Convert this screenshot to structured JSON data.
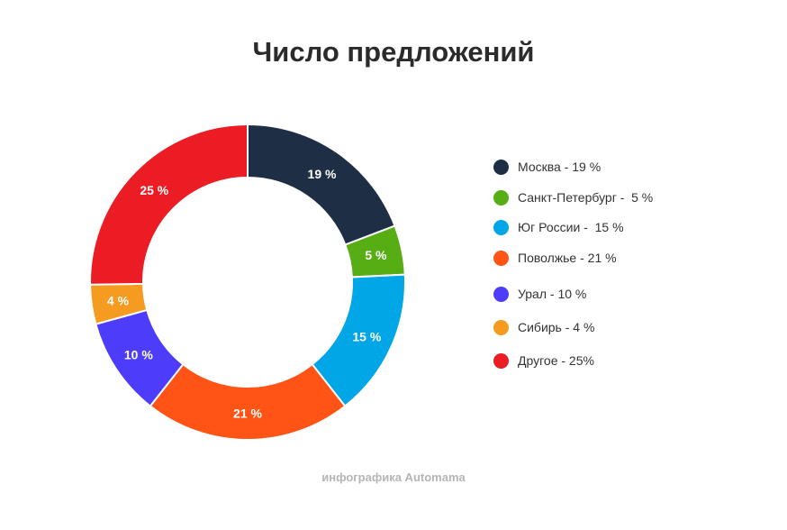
{
  "chart_data": {
    "type": "pie",
    "title": "Число предложений",
    "donut": true,
    "legend_position": "right",
    "slices": [
      {
        "label": "Москва - 19 %",
        "value": 19,
        "value_label": "19 %",
        "color": "#1e2e45"
      },
      {
        "label": "Санкт-Петербург -  5 %",
        "value": 5,
        "value_label": "5 %",
        "color": "#56ad14"
      },
      {
        "label": "Юг России -  15 %",
        "value": 15,
        "value_label": "15 %",
        "color": "#00a6e6"
      },
      {
        "label": "Поволжье - 21 %",
        "value": 21,
        "value_label": "21 %",
        "color": "#ff5415"
      },
      {
        "label": "Урал - 10 %",
        "value": 10,
        "value_label": "10 %",
        "color": "#4d3dfa"
      },
      {
        "label": "Сибирь - 4 %",
        "value": 4,
        "value_label": "4 %",
        "color": "#f59b1f"
      },
      {
        "label": "Другое - 25%",
        "value": 25,
        "value_label": "25 %",
        "color": "#ec1c24"
      }
    ]
  },
  "footer": "инфографика Automama"
}
